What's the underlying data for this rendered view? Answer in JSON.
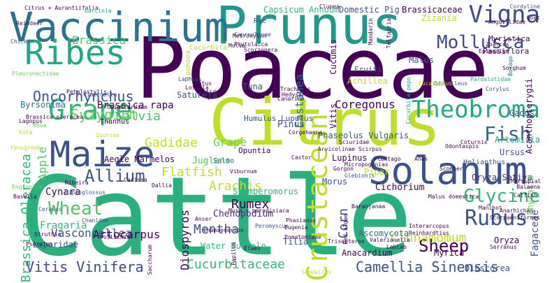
{
  "word_cloud": {
    "words": [
      {
        "text": "Cattle",
        "color": "#2ab07f"
      },
      {
        "text": "Poaceae",
        "color": "#440154"
      },
      {
        "text": "Citrus",
        "color": "#bddf26"
      },
      {
        "text": "Prunus",
        "color": "#1f9a8a"
      },
      {
        "text": "Vaccinium",
        "color": "#2c728e"
      },
      {
        "text": "Solanum",
        "color": "#3b528b"
      },
      {
        "text": "Maize",
        "color": "#3b528b"
      },
      {
        "text": "Ribes",
        "color": "#22a884"
      },
      {
        "text": "Grape",
        "color": "#35b779"
      },
      {
        "text": "Crustacean",
        "color": "#bddf26"
      },
      {
        "text": "Theobroma",
        "color": "#22a884"
      },
      {
        "text": "Vigna",
        "color": "#3e4a89"
      },
      {
        "text": "Mollusca",
        "color": "#3e4a89"
      },
      {
        "text": "Rubus",
        "color": "#3b528b"
      },
      {
        "text": "Fish",
        "color": "#31688e"
      },
      {
        "text": "Glycine",
        "color": "#35b779"
      },
      {
        "text": "Sheep",
        "color": "#440154"
      },
      {
        "text": "Wheat",
        "color": "#52c569"
      },
      {
        "text": "Allium",
        "color": "#3b528b"
      },
      {
        "text": "Oncorhynchus",
        "color": "#3b528b"
      },
      {
        "text": "Syzygium",
        "color": "#6ece58"
      },
      {
        "text": "Vitis Vinifera",
        "color": "#3e4a89"
      },
      {
        "text": "Camellia Sinensis",
        "color": "#3b528b"
      },
      {
        "text": "Brassica Oleracea",
        "color": "#35b779"
      },
      {
        "text": "Salvia",
        "color": "#52c569"
      },
      {
        "text": "Gadidae",
        "color": "#bddf26"
      },
      {
        "text": "Flatfish",
        "color": "#bddf26"
      },
      {
        "text": "Arachis",
        "color": "#bddf26"
      },
      {
        "text": "Mentha",
        "color": "#3b528b"
      },
      {
        "text": "Rumex",
        "color": "#440154"
      },
      {
        "text": "Cinnamomum",
        "color": "#bddf26"
      },
      {
        "text": "Cucurbitaceae",
        "color": "#35b779"
      },
      {
        "text": "Corn",
        "color": "#3b528b"
      },
      {
        "text": "Apple",
        "color": "#52c569"
      },
      {
        "text": "Coregonus",
        "color": "#440154"
      },
      {
        "text": "Castanea",
        "color": "#2c728e"
      },
      {
        "text": "Brassica",
        "color": "#52c569"
      },
      {
        "text": "Brassica rapa",
        "color": "#440154"
      },
      {
        "text": "Diospyros",
        "color": "#440154"
      },
      {
        "text": "Vasconcellea",
        "color": "#3b528b"
      },
      {
        "text": "Artocarpus",
        "color": "#440154"
      },
      {
        "text": "Fagaceae",
        "color": "#3b528b"
      },
      {
        "text": "Chenopodium",
        "color": "#482878"
      },
      {
        "text": "Capsicum Annuum",
        "color": "#35b779"
      },
      {
        "text": "Domestic Pig",
        "color": "#3b528b"
      },
      {
        "text": "Brassicaceae",
        "color": "#440154"
      },
      {
        "text": "Myristica",
        "color": "#440154"
      },
      {
        "text": "Passiflora",
        "color": "#440154"
      },
      {
        "text": "Pinus",
        "color": "#3b528b"
      },
      {
        "text": "Juglans",
        "color": "#52c569"
      },
      {
        "text": "Grape",
        "color": "#6ece58"
      },
      {
        "text": "Cynara",
        "color": "#440154"
      },
      {
        "text": "Fragaria",
        "color": "#35b779"
      },
      {
        "text": "Leporidae",
        "color": "#3b528b"
      },
      {
        "text": "Aegle Marmelos",
        "color": "#440154"
      },
      {
        "text": "Humulus Lupulus",
        "color": "#3b528b"
      },
      {
        "text": "Phaseolus Vulgaris",
        "color": "#3b528b"
      },
      {
        "text": "Scomberomorus",
        "color": "#35b779"
      },
      {
        "text": "Opuntia",
        "color": "#440154"
      },
      {
        "text": "Water Buffalo",
        "color": "#35b779"
      },
      {
        "text": "Cichorium",
        "color": "#440154"
      },
      {
        "text": "Oryza Sativa",
        "color": "#482878"
      },
      {
        "text": "Artemisia",
        "color": "#22a884"
      },
      {
        "text": "Oryza",
        "color": "#440154"
      },
      {
        "text": "Dioscorea",
        "color": "#3b528b"
      },
      {
        "text": "Gadus",
        "color": "#3b528b"
      },
      {
        "text": "Morus",
        "color": "#3b528b"
      },
      {
        "text": "Myrica",
        "color": "#440154"
      },
      {
        "text": "Anacardium",
        "color": "#440154"
      },
      {
        "text": "Ascomycota",
        "color": "#2c728e"
      },
      {
        "text": "Lupinus",
        "color": "#440154"
      },
      {
        "text": "Piper",
        "color": "#bddf26"
      },
      {
        "text": "Tuna",
        "color": "#3b528b"
      },
      {
        "text": "Satureja",
        "color": "#3b528b"
      },
      {
        "text": "Byrsonima",
        "color": "#2c728e"
      },
      {
        "text": "Thunnus",
        "color": "#440154"
      },
      {
        "text": "Salmo",
        "color": "#2c728e"
      },
      {
        "text": "Fruits",
        "color": "#3b528b"
      },
      {
        "text": "Achillea",
        "color": "#bddf26"
      },
      {
        "text": "Vitis",
        "color": "#440154"
      },
      {
        "text": "Malus",
        "color": "#3b528b"
      },
      {
        "text": "Cucumis",
        "color": "#440154"
      },
      {
        "text": "Tilia",
        "color": "#3b528b"
      },
      {
        "text": "Acanthopterygii",
        "color": "#440154"
      },
      {
        "text": "Physalis",
        "color": "#6ece58"
      },
      {
        "text": "Ursus",
        "color": "#3b528b"
      },
      {
        "text": "Helianthus",
        "color": "#3b528b"
      },
      {
        "text": "Zizania",
        "color": "#bddf26"
      },
      {
        "text": "Rye",
        "color": "#3b528b"
      },
      {
        "text": "Ipomoea",
        "color": "#bddf26"
      },
      {
        "text": "Cucurbita",
        "color": "#bddf26"
      },
      {
        "text": "Citrus × Aurantiifolia",
        "color": "#440154"
      },
      {
        "text": "Reindeer",
        "color": "#440154"
      },
      {
        "text": "Lagopus",
        "color": "#440154"
      },
      {
        "text": "Chicken",
        "color": "#3b528b"
      },
      {
        "text": "Garcinia",
        "color": "#22a884"
      },
      {
        "text": "Clupea",
        "color": "#440154"
      },
      {
        "text": "Capreolinae",
        "color": "#3b528b"
      },
      {
        "text": "Metroxylon",
        "color": "#440154"
      },
      {
        "text": "Phytolacca",
        "color": "#440154"
      },
      {
        "text": "Scorzonera",
        "color": "#440154"
      },
      {
        "text": "Molva",
        "color": "#440154"
      },
      {
        "text": "Mandarin",
        "color": "#440154"
      },
      {
        "text": "Telfairia",
        "color": "#440154"
      },
      {
        "text": "Cordyline",
        "color": "#3b528b"
      },
      {
        "text": "Anguillidae",
        "color": "#440154"
      },
      {
        "text": "Epimedium",
        "color": "#440154"
      },
      {
        "text": "Zoarces",
        "color": "#440154"
      },
      {
        "text": "Goat",
        "color": "#440154"
      },
      {
        "text": "Borago",
        "color": "#2c728e"
      },
      {
        "text": "Sorghum",
        "color": "#440154"
      },
      {
        "text": "Odocoileus",
        "color": "#3b528b"
      },
      {
        "text": "Canarium",
        "color": "#440154"
      },
      {
        "text": "Trachurus",
        "color": "#440154"
      },
      {
        "text": "Hedysarum",
        "color": "#440154"
      },
      {
        "text": "Lotus",
        "color": "#440154"
      },
      {
        "text": "Lotella",
        "color": "#440154"
      },
      {
        "text": "Laphius",
        "color": "#3b528b"
      },
      {
        "text": "Lotidae",
        "color": "#440154"
      },
      {
        "text": "Pleuronectidae",
        "color": "#6ece58"
      },
      {
        "text": "Petalostylis",
        "color": "#440154"
      },
      {
        "text": "Pimpinella",
        "color": "#3b528b"
      },
      {
        "text": "Clinacardium",
        "color": "#440154"
      },
      {
        "text": "Cucurbita pepo",
        "color": "#22a884"
      },
      {
        "text": "Pardalotidae",
        "color": "#22a884"
      },
      {
        "text": "Eucalyptus",
        "color": "#bddf26"
      },
      {
        "text": "Corylus",
        "color": "#3b528b"
      },
      {
        "text": "Rhoa",
        "color": "#6ece58"
      },
      {
        "text": "Brassica oleracea",
        "color": "#440154"
      },
      {
        "text": "Kota",
        "color": "#bddf26"
      },
      {
        "text": "Corgehaena",
        "color": "#440154"
      },
      {
        "text": "Scirpus",
        "color": "#440154"
      },
      {
        "text": "Sciuridae",
        "color": "#440154"
      },
      {
        "text": "Castor",
        "color": "#440154"
      },
      {
        "text": "Plantago",
        "color": "#440154"
      },
      {
        "text": "Micropogonias",
        "color": "#440154"
      },
      {
        "text": "Glebionis",
        "color": "#3b528b"
      },
      {
        "text": "Gorgon",
        "color": "#440154"
      },
      {
        "text": "Viburnum",
        "color": "#440154"
      },
      {
        "text": "Anas",
        "color": "#440154"
      },
      {
        "text": "Fenugreek",
        "color": "#bddf26"
      },
      {
        "text": "Soursop",
        "color": "#bddf26"
      },
      {
        "text": "Hippoglossus",
        "color": "#3b528b"
      },
      {
        "text": "Ribeira",
        "color": "#440154"
      },
      {
        "text": "Carissa",
        "color": "#440154"
      },
      {
        "text": "Dallia",
        "color": "#440154"
      },
      {
        "text": "Engraulis",
        "color": "#6ece58"
      },
      {
        "text": "Basella",
        "color": "#440154"
      },
      {
        "text": "Cerasus",
        "color": "#3b528b"
      },
      {
        "text": "Chanidae",
        "color": "#3b528b"
      },
      {
        "text": "Pollichia",
        "color": "#440154"
      },
      {
        "text": "Psoralea",
        "color": "#440154"
      },
      {
        "text": "Struthio",
        "color": "#440154"
      },
      {
        "text": "Saccharum",
        "color": "#440154"
      },
      {
        "text": "Musa × paradisiaca",
        "color": "#440154"
      },
      {
        "text": "Anser",
        "color": "#440154"
      },
      {
        "text": "Peromyscus",
        "color": "#3b528b"
      },
      {
        "text": "Phasianus",
        "color": "#440154"
      },
      {
        "text": "Eugenia",
        "color": "#440154"
      },
      {
        "text": "Papilus",
        "color": "#440154"
      },
      {
        "text": "Pomatomidae",
        "color": "#440154"
      },
      {
        "text": "Trisepteros",
        "color": "#440154"
      },
      {
        "text": "Valerianella",
        "color": "#440154"
      },
      {
        "text": "Lablab",
        "color": "#440154"
      },
      {
        "text": "Elwes",
        "color": "#440154"
      },
      {
        "text": "Chamaenerion",
        "color": "#440154"
      },
      {
        "text": "Sandaites",
        "color": "#bddf26"
      },
      {
        "text": "Red algae",
        "color": "#440154"
      },
      {
        "text": "Baranjanaa",
        "color": "#440154"
      },
      {
        "text": "Interarcopus",
        "color": "#440154"
      },
      {
        "text": "Reinhardtius",
        "color": "#440154"
      },
      {
        "text": "Serranus",
        "color": "#440154"
      },
      {
        "text": "Scorpaeniformes",
        "color": "#440154"
      },
      {
        "text": "Anarhichas",
        "color": "#440154"
      },
      {
        "text": "Manihot",
        "color": "#440154"
      },
      {
        "text": "Catfish",
        "color": "#440154"
      },
      {
        "text": "Marsupial",
        "color": "#440154"
      },
      {
        "text": "Malus domestica",
        "color": "#440154"
      },
      {
        "text": "Scomber",
        "color": "#440154"
      },
      {
        "text": "Coturnix",
        "color": "#440154"
      },
      {
        "text": "Balaena",
        "color": "#440154"
      },
      {
        "text": "Arvicolinae",
        "color": "#440154"
      },
      {
        "text": "Odontaspis",
        "color": "#440154"
      }
    ]
  }
}
